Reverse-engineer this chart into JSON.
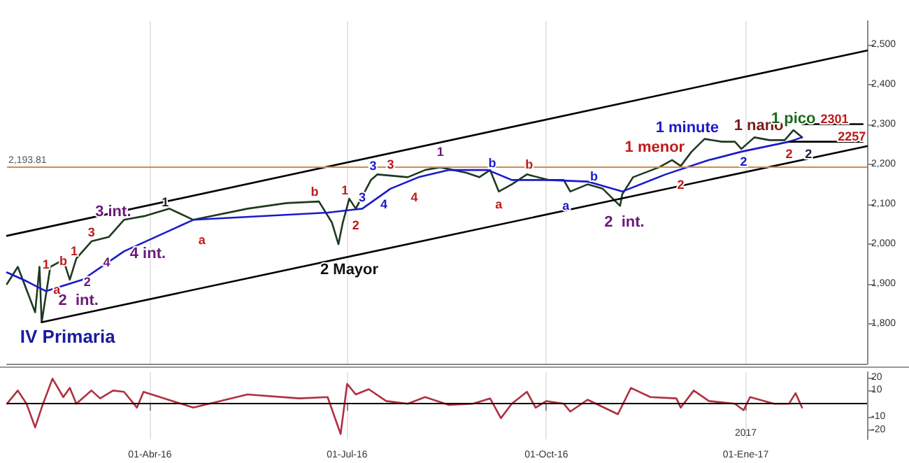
{
  "chart_data": [
    {
      "type": "line",
      "xlim": [
        "2016-01-26",
        "2017-02-26"
      ],
      "ylim": [
        1700,
        2560
      ],
      "xticks": [
        {
          "value": "2016-04-01",
          "label": null
        },
        {
          "value": "2016-07-01",
          "label": null
        },
        {
          "value": "2016-10-01",
          "label": null
        },
        {
          "value": "2017-01-01",
          "label": null
        }
      ],
      "yticks": [
        {
          "value": 1800,
          "label": "1,800"
        },
        {
          "value": 1900,
          "label": "1,900"
        },
        {
          "value": 2000,
          "label": "2,000"
        },
        {
          "value": 2100,
          "label": "2,100"
        },
        {
          "value": 2200,
          "label": "2,200"
        },
        {
          "value": 2300,
          "label": "2,300"
        },
        {
          "value": 2400,
          "label": "2,400"
        },
        {
          "value": 2500,
          "label": "2,500"
        }
      ],
      "tick_labels": "y",
      "grid": "x",
      "marker": "none",
      "series": [
        {
          "color": "#1e3a1e",
          "x": [
            "2016-01-26",
            "2016-01-31",
            "2016-02-08",
            "2016-02-10",
            "2016-02-11",
            "2016-02-15",
            "2016-02-21",
            "2016-02-24",
            "2016-02-27",
            "2016-03-05",
            "2016-03-13",
            "2016-03-20",
            "2016-03-30",
            "2016-04-10",
            "2016-04-21",
            "2016-05-16",
            "2016-06-03",
            "2016-06-18",
            "2016-06-24",
            "2016-06-27",
            "2016-06-29",
            "2016-07-02",
            "2016-07-05",
            "2016-07-12",
            "2016-07-15",
            "2016-07-29",
            "2016-08-06",
            "2016-08-13",
            "2016-08-25",
            "2016-08-31",
            "2016-09-05",
            "2016-09-09",
            "2016-09-15",
            "2016-09-22",
            "2016-10-02",
            "2016-10-09",
            "2016-10-12",
            "2016-10-20",
            "2016-10-27",
            "2016-11-04",
            "2016-11-05",
            "2016-11-10",
            "2016-11-22",
            "2016-11-28",
            "2016-12-02",
            "2016-12-07",
            "2016-12-13",
            "2016-12-21",
            "2016-12-27",
            "2016-12-30",
            "2017-01-05",
            "2017-01-12",
            "2017-01-19",
            "2017-01-23",
            "2017-01-27"
          ],
          "values": [
            1900,
            1943,
            1829,
            1943,
            1804,
            1943,
            1961,
            1911,
            1964,
            2007,
            2018,
            2061,
            2071,
            2089,
            2061,
            2089,
            2103,
            2107,
            2054,
            2000,
            2054,
            2114,
            2089,
            2161,
            2175,
            2168,
            2186,
            2193,
            2179,
            2168,
            2186,
            2132,
            2150,
            2175,
            2161,
            2161,
            2132,
            2150,
            2139,
            2096,
            2125,
            2168,
            2193,
            2211,
            2196,
            2232,
            2264,
            2257,
            2257,
            2239,
            2268,
            2261,
            2261,
            2286,
            2268
          ]
        },
        {
          "color": "#1a1acc",
          "x": [
            "2016-01-26",
            "2016-02-04",
            "2016-02-13",
            "2016-03-01",
            "2016-03-20",
            "2016-04-21",
            "2016-06-22",
            "2016-07-08",
            "2016-07-21",
            "2016-08-03",
            "2016-08-17",
            "2016-09-04",
            "2016-09-15",
            "2016-10-02",
            "2016-10-20",
            "2016-11-05",
            "2016-11-25",
            "2016-12-15",
            "2016-12-30",
            "2017-01-21",
            "2017-01-27"
          ],
          "values": [
            1929,
            1907,
            1882,
            1911,
            1982,
            2061,
            2079,
            2089,
            2139,
            2168,
            2186,
            2186,
            2161,
            2161,
            2157,
            2132,
            2175,
            2211,
            2232,
            2257,
            2268
          ]
        },
        {
          "color": "#000000",
          "x": [
            "2016-01-26",
            "2017-02-26"
          ],
          "values": [
            2021,
            2486
          ]
        },
        {
          "color": "#000000",
          "x": [
            "2016-02-11",
            "2017-02-26"
          ],
          "values": [
            1804,
            2246
          ]
        },
        {
          "color": "#000000",
          "x": [
            "2017-01-27",
            "2017-02-24"
          ],
          "values": [
            2301,
            2301
          ]
        },
        {
          "color": "#000000",
          "x": [
            "2017-01-21",
            "2017-02-24"
          ],
          "values": [
            2257,
            2257
          ]
        }
      ],
      "ref_lines": [
        {
          "axis": "y",
          "value": 2193.81,
          "label": "2,193.81",
          "color": "#d08a50"
        }
      ],
      "annotations": [
        "IV Primaria",
        "2  int.",
        "a",
        "1",
        "b",
        "1",
        "2",
        "3",
        "4",
        "3 int.",
        "4 int.",
        "1",
        "a",
        "b",
        "1",
        "2",
        "3",
        "2 Mayor",
        "3",
        "3",
        "4",
        "4",
        "1",
        "b",
        "a",
        "b",
        "a",
        "b",
        "2  int.",
        "1 menor",
        "2",
        "1 minute",
        "2",
        "1 nano",
        "1 pico",
        "2301",
        "2257",
        "2",
        "2"
      ]
    },
    {
      "type": "line",
      "xlim": [
        "2016-01-26",
        "2017-02-26"
      ],
      "ylim": [
        -27,
        24
      ],
      "xticks": [
        {
          "value": "2016-04-01",
          "label": "01-Abr-16"
        },
        {
          "value": "2016-07-01",
          "label": "01-Jul-16"
        },
        {
          "value": "2016-10-01",
          "label": "01-Oct-16"
        },
        {
          "value": "2017-01-01",
          "label": "01-Ene-17"
        }
      ],
      "yticks": [
        -20,
        -10,
        10,
        20
      ],
      "grid": "x",
      "marker": "none",
      "series": [
        {
          "color": "#b03040",
          "x": [
            "2016-01-26",
            "2016-01-31",
            "2016-02-04",
            "2016-02-08",
            "2016-02-11",
            "2016-02-16",
            "2016-02-21",
            "2016-02-24",
            "2016-02-27",
            "2016-03-05",
            "2016-03-09",
            "2016-03-15",
            "2016-03-20",
            "2016-03-26",
            "2016-03-29",
            "2016-04-21",
            "2016-05-16",
            "2016-06-09",
            "2016-06-22",
            "2016-06-28",
            "2016-07-01",
            "2016-07-05",
            "2016-07-11",
            "2016-07-19",
            "2016-07-29",
            "2016-08-06",
            "2016-08-17",
            "2016-08-28",
            "2016-09-05",
            "2016-09-10",
            "2016-09-15",
            "2016-09-22",
            "2016-09-26",
            "2016-10-01",
            "2016-10-09",
            "2016-10-12",
            "2016-10-20",
            "2016-11-03",
            "2016-11-09",
            "2016-11-18",
            "2016-11-30",
            "2016-12-02",
            "2016-12-08",
            "2016-12-15",
            "2016-12-27",
            "2016-12-31",
            "2017-01-03",
            "2017-01-14",
            "2017-01-21",
            "2017-01-24",
            "2017-01-27"
          ],
          "values": [
            0,
            10,
            0,
            -18,
            -3,
            19,
            5,
            12,
            0,
            10,
            4,
            10,
            9,
            -3,
            9,
            -3,
            7,
            4,
            5,
            -23,
            15,
            7,
            11,
            2,
            0,
            5,
            -1,
            0,
            4,
            -11,
            0,
            9,
            -3,
            2,
            0,
            -6,
            3,
            -8,
            12,
            5,
            4,
            -3,
            10,
            2,
            0,
            -5,
            5,
            0,
            0,
            8,
            -3
          ]
        }
      ],
      "ref_lines": [
        {
          "axis": "y",
          "value": 0,
          "color": "#000000"
        }
      ],
      "annotations": [
        "2017"
      ]
    }
  ]
}
